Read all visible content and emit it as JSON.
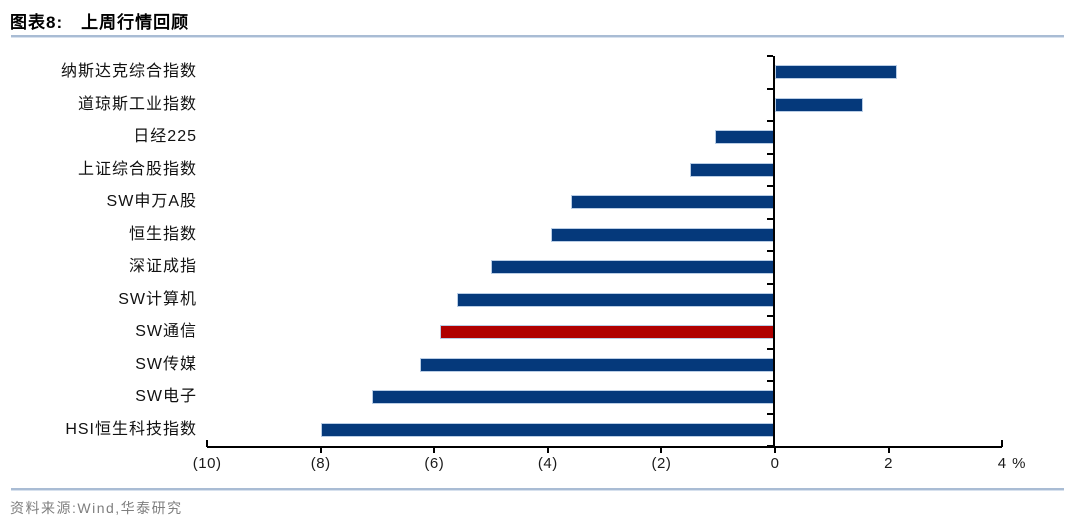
{
  "header": {
    "figure_label": "图表8:",
    "title": "上周行情回顾"
  },
  "footer": {
    "source": "资料来源:Wind,华泰研究"
  },
  "chart_data": {
    "type": "bar",
    "orientation": "horizontal",
    "title": "上周行情回顾",
    "unit": "%",
    "categories": [
      "纳斯达克综合指数",
      "道琼斯工业指数",
      "日经225",
      "上证综合股指数",
      "SW申万A股",
      "恒生指数",
      "深证成指",
      "SW计算机",
      "SW通信",
      "SW传媒",
      "SW电子",
      "HSI恒生科技指数"
    ],
    "values": [
      2.15,
      1.55,
      -1.05,
      -1.5,
      -3.6,
      -3.95,
      -5.0,
      -5.6,
      -5.9,
      -6.25,
      -7.1,
      -8.0
    ],
    "highlight_category": "SW通信",
    "colors": {
      "bar": "#05397b",
      "highlight": "#b00000"
    },
    "xlim": [
      -10,
      4
    ],
    "x_ticks": [
      {
        "value": -10,
        "label": "(10)"
      },
      {
        "value": -8,
        "label": "(8)"
      },
      {
        "value": -6,
        "label": "(6)"
      },
      {
        "value": -4,
        "label": "(4)"
      },
      {
        "value": -2,
        "label": "(2)"
      },
      {
        "value": 0,
        "label": "0"
      },
      {
        "value": 2,
        "label": "2"
      },
      {
        "value": 4,
        "label": "4"
      }
    ],
    "grid": false,
    "legend": false
  }
}
